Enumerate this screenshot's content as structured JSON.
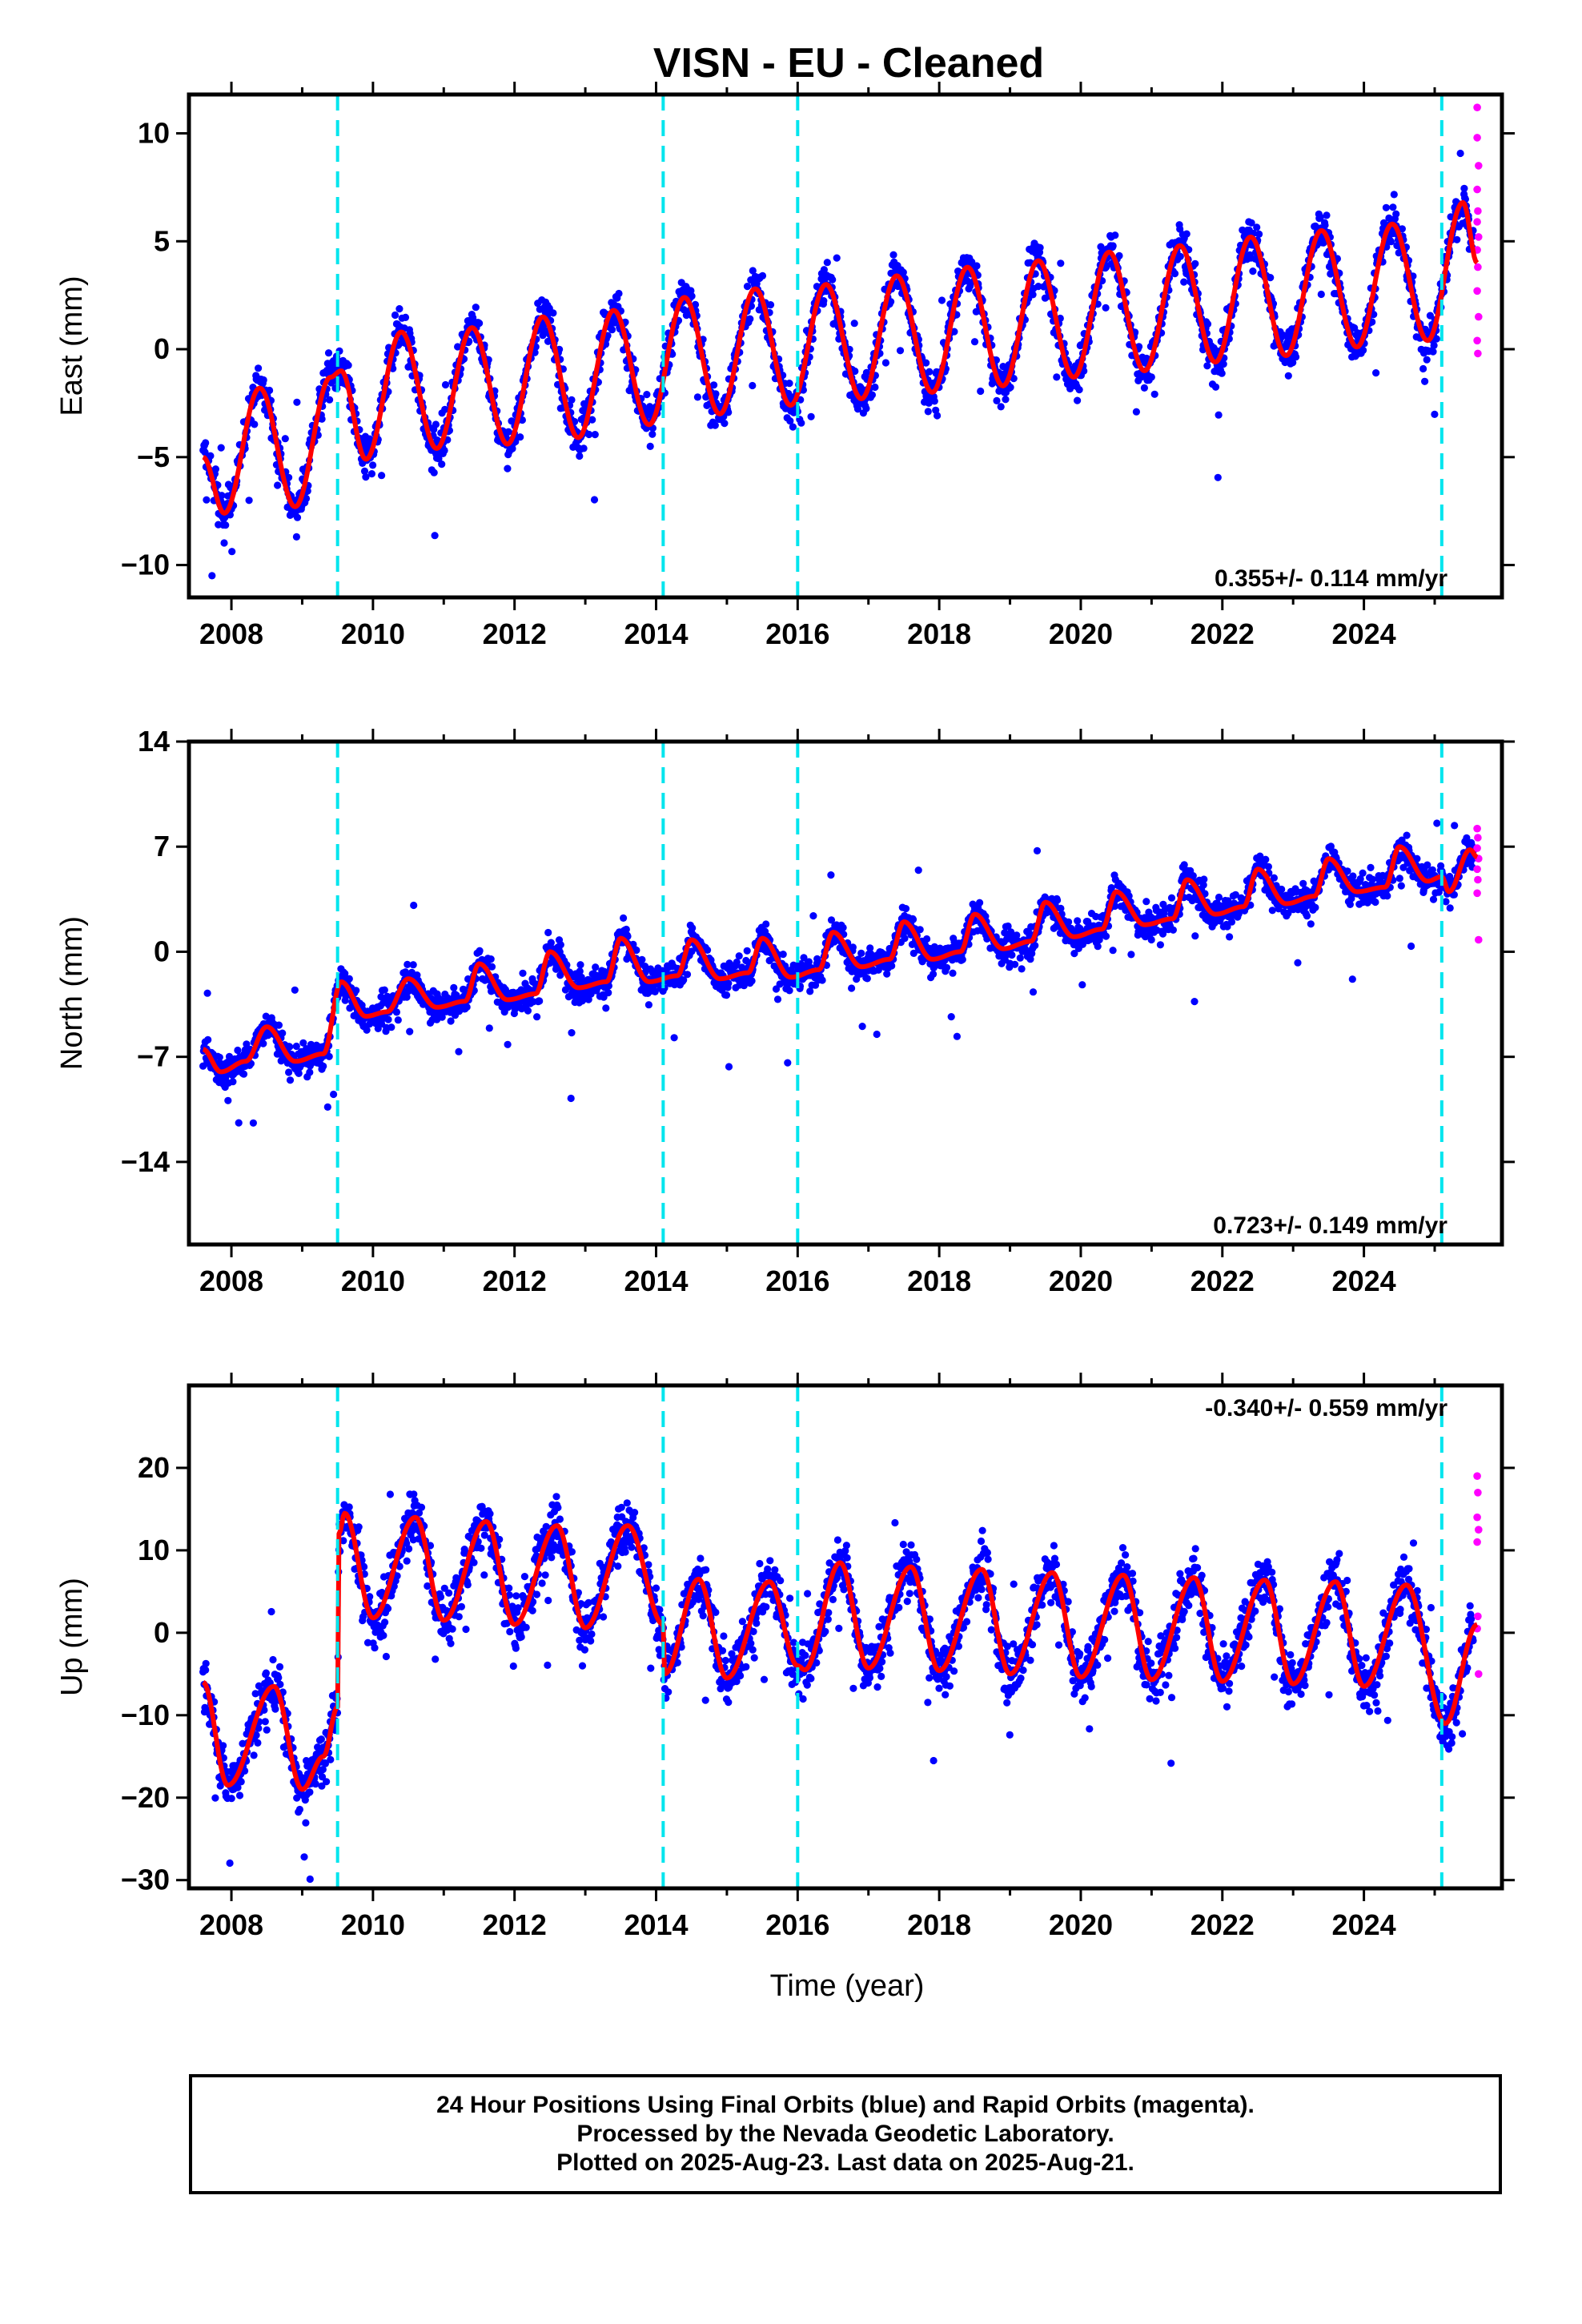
{
  "title": "VISN  - EU - Cleaned",
  "x_axis_label": "Time (year)",
  "footer": {
    "line1": "24 Hour Positions Using Final Orbits (blue) and Rapid Orbits (magenta).",
    "line2": "Processed by the Nevada Geodetic Laboratory.",
    "line3": "Plotted on 2025-Aug-23. Last data on 2025-Aug-21."
  },
  "colors": {
    "final_orbits": "#0000ff",
    "rapid_orbits": "#ff00ff",
    "model": "#ff0000",
    "steps": "#00e5ee"
  },
  "chart_data": [
    {
      "type": "scatter",
      "component": "East",
      "ylabel": "East (mm)",
      "xlim": [
        2007.4,
        2025.95
      ],
      "ylim": [
        -11.5,
        11.8
      ],
      "xticks": [
        2008,
        2010,
        2012,
        2014,
        2016,
        2018,
        2020,
        2022,
        2024
      ],
      "yticks": [
        -10,
        -5,
        0,
        5,
        10
      ],
      "rate_text": "0.355+/- 0.114 mm/yr",
      "rate_position": "bottom-right",
      "step_epochs": [
        2009.5,
        2014.1,
        2016.0,
        2025.1
      ],
      "model_waypoints": [
        [
          2007.6,
          -5.0
        ],
        [
          2007.9,
          -7.6
        ],
        [
          2008.4,
          -1.8
        ],
        [
          2008.9,
          -7.3
        ],
        [
          2009.4,
          -1.3
        ],
        [
          2009.55,
          -1.0
        ],
        [
          2009.9,
          -5.1
        ],
        [
          2010.4,
          0.8
        ],
        [
          2010.9,
          -4.6
        ],
        [
          2011.4,
          1.0
        ],
        [
          2011.9,
          -4.4
        ],
        [
          2012.4,
          1.5
        ],
        [
          2012.9,
          -4.1
        ],
        [
          2013.4,
          1.8
        ],
        [
          2013.9,
          -3.5
        ],
        [
          2014.4,
          2.4
        ],
        [
          2014.9,
          -3.0
        ],
        [
          2015.4,
          2.8
        ],
        [
          2015.9,
          -2.6
        ],
        [
          2016.4,
          3.0
        ],
        [
          2016.9,
          -2.3
        ],
        [
          2017.4,
          3.4
        ],
        [
          2017.9,
          -2.0
        ],
        [
          2018.4,
          3.8
        ],
        [
          2018.9,
          -1.7
        ],
        [
          2019.4,
          4.1
        ],
        [
          2019.9,
          -1.3
        ],
        [
          2020.4,
          4.5
        ],
        [
          2020.9,
          -1.0
        ],
        [
          2021.4,
          4.8
        ],
        [
          2021.9,
          -0.6
        ],
        [
          2022.4,
          5.2
        ],
        [
          2022.9,
          -0.3
        ],
        [
          2023.4,
          5.5
        ],
        [
          2023.9,
          0.1
        ],
        [
          2024.4,
          5.8
        ],
        [
          2024.9,
          0.4
        ],
        [
          2025.4,
          6.8
        ],
        [
          2025.6,
          4.0
        ]
      ],
      "rapid_points": [
        [
          2025.6,
          11.2
        ],
        [
          2025.6,
          9.8
        ],
        [
          2025.62,
          8.5
        ],
        [
          2025.6,
          7.4
        ],
        [
          2025.61,
          6.4
        ],
        [
          2025.6,
          5.9
        ],
        [
          2025.62,
          5.2
        ],
        [
          2025.6,
          4.6
        ],
        [
          2025.61,
          3.8
        ],
        [
          2025.6,
          2.7
        ],
        [
          2025.62,
          1.5
        ],
        [
          2025.6,
          0.4
        ],
        [
          2025.61,
          -0.2
        ]
      ]
    },
    {
      "type": "scatter",
      "component": "North",
      "ylabel": "North (mm)",
      "xlim": [
        2007.4,
        2025.95
      ],
      "ylim": [
        -19.5,
        14.0
      ],
      "xticks": [
        2008,
        2010,
        2012,
        2014,
        2016,
        2018,
        2020,
        2022,
        2024
      ],
      "yticks": [
        -14,
        -7,
        0,
        7,
        14
      ],
      "rate_text": "0.723+/- 0.149 mm/yr",
      "rate_position": "bottom-right",
      "step_epochs": [
        2009.5,
        2014.1,
        2016.0,
        2025.1
      ],
      "model_waypoints": [
        [
          2007.6,
          -6.5
        ],
        [
          2007.85,
          -8.0
        ],
        [
          2008.2,
          -7.3
        ],
        [
          2008.5,
          -5.0
        ],
        [
          2008.9,
          -7.3
        ],
        [
          2009.3,
          -6.8
        ],
        [
          2009.55,
          -2.0
        ],
        [
          2009.9,
          -4.3
        ],
        [
          2010.2,
          -4.0
        ],
        [
          2010.5,
          -1.8
        ],
        [
          2010.9,
          -3.7
        ],
        [
          2011.3,
          -3.3
        ],
        [
          2011.5,
          -0.8
        ],
        [
          2011.9,
          -3.2
        ],
        [
          2012.3,
          -2.8
        ],
        [
          2012.5,
          0.0
        ],
        [
          2012.9,
          -2.4
        ],
        [
          2013.3,
          -2.0
        ],
        [
          2013.5,
          0.9
        ],
        [
          2013.9,
          -2.0
        ],
        [
          2014.3,
          -1.6
        ],
        [
          2014.5,
          0.8
        ],
        [
          2014.9,
          -1.8
        ],
        [
          2015.3,
          -1.4
        ],
        [
          2015.5,
          0.9
        ],
        [
          2015.9,
          -1.7
        ],
        [
          2016.3,
          -1.2
        ],
        [
          2016.5,
          1.3
        ],
        [
          2016.9,
          -1.0
        ],
        [
          2017.3,
          -0.5
        ],
        [
          2017.5,
          2.0
        ],
        [
          2017.9,
          -0.5
        ],
        [
          2018.3,
          0.0
        ],
        [
          2018.5,
          2.5
        ],
        [
          2018.9,
          0.2
        ],
        [
          2019.3,
          0.7
        ],
        [
          2019.5,
          3.3
        ],
        [
          2019.9,
          1.0
        ],
        [
          2020.3,
          1.5
        ],
        [
          2020.5,
          4.0
        ],
        [
          2020.9,
          1.8
        ],
        [
          2021.3,
          2.2
        ],
        [
          2021.5,
          4.8
        ],
        [
          2021.9,
          2.5
        ],
        [
          2022.3,
          3.0
        ],
        [
          2022.5,
          5.5
        ],
        [
          2022.9,
          3.2
        ],
        [
          2023.3,
          3.7
        ],
        [
          2023.5,
          6.2
        ],
        [
          2023.9,
          4.0
        ],
        [
          2024.3,
          4.3
        ],
        [
          2024.5,
          7.0
        ],
        [
          2024.9,
          4.7
        ],
        [
          2025.1,
          5.0
        ],
        [
          2025.2,
          4.0
        ],
        [
          2025.5,
          6.8
        ],
        [
          2025.6,
          6.3
        ]
      ],
      "rapid_points": [
        [
          2025.6,
          8.2
        ],
        [
          2025.61,
          7.6
        ],
        [
          2025.6,
          6.9
        ],
        [
          2025.62,
          6.2
        ],
        [
          2025.6,
          5.5
        ],
        [
          2025.61,
          4.8
        ],
        [
          2025.6,
          3.9
        ],
        [
          2025.62,
          0.8
        ]
      ]
    },
    {
      "type": "scatter",
      "component": "Up",
      "ylabel": "Up (mm)",
      "xlim": [
        2007.4,
        2025.95
      ],
      "ylim": [
        -31.0,
        30.0
      ],
      "xticks": [
        2008,
        2010,
        2012,
        2014,
        2016,
        2018,
        2020,
        2022,
        2024
      ],
      "yticks": [
        -30,
        -20,
        -10,
        0,
        10,
        20
      ],
      "rate_text": "-0.340+/- 0.559 mm/yr",
      "rate_position": "top-right",
      "step_epochs": [
        2009.5,
        2014.1,
        2016.0,
        2025.1
      ],
      "model_waypoints": [
        [
          2007.6,
          -6.0
        ],
        [
          2007.95,
          -18.5
        ],
        [
          2008.6,
          -6.5
        ],
        [
          2009.0,
          -19.0
        ],
        [
          2009.3,
          -15.0
        ],
        [
          2009.5,
          -9.0
        ],
        [
          2009.52,
          12.0
        ],
        [
          2009.6,
          14.5
        ],
        [
          2010.0,
          1.8
        ],
        [
          2010.6,
          14.0
        ],
        [
          2011.0,
          1.5
        ],
        [
          2011.6,
          13.5
        ],
        [
          2012.0,
          1.0
        ],
        [
          2012.6,
          13.0
        ],
        [
          2013.0,
          0.6
        ],
        [
          2013.6,
          13.0
        ],
        [
          2014.1,
          1.0
        ],
        [
          2014.12,
          -5.0
        ],
        [
          2014.6,
          6.5
        ],
        [
          2015.0,
          -5.5
        ],
        [
          2015.6,
          6.2
        ],
        [
          2016.0,
          -4.0
        ],
        [
          2016.1,
          -4.5
        ],
        [
          2016.6,
          8.5
        ],
        [
          2017.0,
          -4.3
        ],
        [
          2017.6,
          8.0
        ],
        [
          2018.0,
          -4.6
        ],
        [
          2018.6,
          7.7
        ],
        [
          2019.0,
          -5.0
        ],
        [
          2019.6,
          7.3
        ],
        [
          2020.0,
          -5.4
        ],
        [
          2020.6,
          7.0
        ],
        [
          2021.0,
          -5.7
        ],
        [
          2021.6,
          6.7
        ],
        [
          2022.0,
          -5.9
        ],
        [
          2022.6,
          6.4
        ],
        [
          2023.0,
          -6.2
        ],
        [
          2023.6,
          6.2
        ],
        [
          2024.0,
          -6.5
        ],
        [
          2024.6,
          5.8
        ],
        [
          2025.15,
          -11.0
        ],
        [
          2025.6,
          1.0
        ]
      ],
      "rapid_points": [
        [
          2025.6,
          19.0
        ],
        [
          2025.61,
          17.0
        ],
        [
          2025.6,
          14.0
        ],
        [
          2025.62,
          12.5
        ],
        [
          2025.6,
          11.0
        ],
        [
          2025.61,
          2.0
        ],
        [
          2025.6,
          0.5
        ],
        [
          2025.62,
          -5.0
        ]
      ]
    }
  ]
}
